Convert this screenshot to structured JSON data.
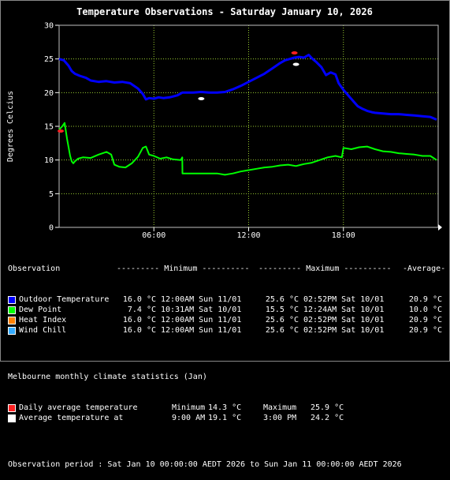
{
  "chart_data": {
    "type": "line",
    "title": "Temperature Observations - Saturday January 10, 2026",
    "ylabel": "Degrees Celcius",
    "ylim": [
      0,
      30
    ],
    "yticks": [
      "0",
      "5",
      "10",
      "15",
      "20",
      "25",
      "30"
    ],
    "xlim": [
      0,
      24
    ],
    "xticks": [
      {
        "label": "06:00",
        "x": 6
      },
      {
        "label": "12:00",
        "x": 12
      },
      {
        "label": "18:00",
        "x": 18
      }
    ],
    "grid": true,
    "series": [
      {
        "name": "Outdoor Temperature",
        "color": "#0000ff",
        "x": [
          0,
          0.3,
          0.6,
          0.8,
          1.0,
          1.3,
          1.7,
          2.0,
          2.5,
          3.0,
          3.5,
          4.0,
          4.5,
          5.0,
          5.3,
          5.5,
          5.7,
          6.0,
          6.3,
          6.6,
          7.0,
          7.5,
          7.8,
          8.0,
          8.5,
          9.0,
          9.5,
          10.0,
          10.5,
          11.0,
          11.5,
          12.0,
          12.5,
          13.0,
          13.5,
          14.0,
          14.3,
          14.6,
          14.9,
          15.2,
          15.5,
          15.8,
          16.0,
          16.3,
          16.6,
          16.9,
          17.2,
          17.5,
          17.7,
          18.0,
          18.3,
          18.6,
          18.9,
          19.2,
          19.5,
          19.8,
          20.0,
          20.5,
          21.0,
          21.5,
          22.0,
          22.5,
          23.0,
          23.5,
          23.9
        ],
        "values": [
          25.0,
          24.8,
          24.0,
          23.2,
          22.8,
          22.5,
          22.2,
          21.8,
          21.6,
          21.7,
          21.5,
          21.6,
          21.4,
          20.6,
          19.8,
          19.0,
          19.2,
          19.1,
          19.3,
          19.2,
          19.3,
          19.6,
          20.0,
          20.0,
          20.0,
          20.1,
          20.0,
          20.0,
          20.1,
          20.5,
          21.0,
          21.6,
          22.2,
          22.8,
          23.6,
          24.4,
          24.8,
          25.0,
          25.2,
          25.3,
          25.2,
          25.6,
          25.1,
          24.5,
          23.8,
          22.6,
          23.0,
          22.7,
          21.4,
          20.4,
          19.6,
          18.8,
          18.0,
          17.6,
          17.3,
          17.1,
          17.0,
          16.9,
          16.8,
          16.8,
          16.7,
          16.6,
          16.5,
          16.4,
          16.0
        ]
      },
      {
        "name": "Dew Point",
        "color": "#00ff00",
        "x": [
          0,
          0.2,
          0.35,
          0.5,
          0.7,
          0.8,
          0.9,
          1.0,
          1.2,
          1.5,
          2.0,
          2.5,
          3.0,
          3.3,
          3.5,
          3.8,
          4.2,
          4.6,
          5.0,
          5.3,
          5.5,
          5.7,
          6.0,
          6.4,
          6.8,
          7.2,
          7.7,
          7.8,
          7.81,
          8.5,
          9.0,
          9.5,
          10.0,
          10.5,
          11.0,
          11.5,
          12.0,
          12.5,
          13.0,
          13.5,
          14.0,
          14.5,
          15.0,
          15.5,
          16.0,
          16.5,
          17.0,
          17.5,
          17.9,
          18.0,
          18.5,
          19.0,
          19.5,
          20.0,
          20.5,
          21.0,
          21.5,
          22.0,
          22.5,
          23.0,
          23.5,
          23.9
        ],
        "values": [
          14.5,
          15.0,
          15.5,
          13.2,
          10.6,
          9.8,
          9.5,
          9.8,
          10.2,
          10.4,
          10.3,
          10.8,
          11.2,
          10.8,
          9.3,
          9.0,
          8.9,
          9.5,
          10.5,
          11.8,
          12.0,
          10.8,
          10.6,
          10.2,
          10.4,
          10.1,
          10.0,
          10.4,
          8.0,
          8.0,
          8.0,
          8.0,
          8.0,
          7.8,
          8.0,
          8.3,
          8.5,
          8.7,
          8.9,
          9.0,
          9.2,
          9.3,
          9.1,
          9.4,
          9.6,
          10.0,
          10.4,
          10.6,
          10.4,
          11.8,
          11.6,
          11.9,
          12.0,
          11.6,
          11.3,
          11.2,
          11.0,
          10.9,
          10.8,
          10.6,
          10.6,
          10.0
        ]
      }
    ],
    "markers": [
      {
        "name": "Daily average temperature",
        "color": "#ff2020",
        "points": [
          {
            "x": 0.1,
            "y": 14.3
          },
          {
            "x": 14.9,
            "y": 25.9
          }
        ]
      },
      {
        "name": "Average temperature",
        "color": "#ffffff",
        "points": [
          {
            "x": 9.0,
            "y": 19.1
          },
          {
            "x": 15.0,
            "y": 24.2
          }
        ]
      }
    ]
  },
  "legend": {
    "header": {
      "observation": "Observation",
      "minimum": "--------- Minimum ----------",
      "maximum": "--------- Maximum ----------",
      "average": "-Average-"
    },
    "rows": [
      {
        "label": "Outdoor Temperature",
        "color": "#0000ff",
        "min_val": "16.0 °C",
        "min_time": "12:00AM Sun 11/01",
        "max_val": "25.6 °C",
        "max_time": "02:52PM Sat 10/01",
        "avg": "20.9 °C"
      },
      {
        "label": "Dew Point",
        "color": "#00ff00",
        "min_val": "7.4 °C",
        "min_time": "10:31AM Sat 10/01",
        "max_val": "15.5 °C",
        "max_time": "12:24AM Sat 10/01",
        "avg": "10.0 °C"
      },
      {
        "label": "Heat Index",
        "color": "#ff8000",
        "min_val": "16.0 °C",
        "min_time": "12:00AM Sun 11/01",
        "max_val": "25.6 °C",
        "max_time": "02:52PM Sat 10/01",
        "avg": "20.9 °C"
      },
      {
        "label": "Wind Chill",
        "color": "#33aaff",
        "min_val": "16.0 °C",
        "min_time": "12:00AM Sun 11/01",
        "max_val": "25.6 °C",
        "max_time": "02:52PM Sat 10/01",
        "avg": "20.9 °C"
      }
    ]
  },
  "climate": {
    "header": "Melbourne monthly climate statistics (Jan)",
    "rows": [
      {
        "label": "Daily average temperature",
        "color": "#ff2020",
        "c1": "Minimum",
        "c2": "14.3 °C",
        "c3": "Maximum",
        "c4": "25.9 °C"
      },
      {
        "label": "Average temperature at",
        "color": "#ffffff",
        "c1": "9:00 AM",
        "c2": "19.1 °C",
        "c3": "3:00 PM",
        "c4": "24.2 °C"
      }
    ]
  },
  "period": "Observation period : Sat Jan 10 00:00:00 AEDT 2026 to Sun Jan 11 00:00:00 AEDT 2026"
}
